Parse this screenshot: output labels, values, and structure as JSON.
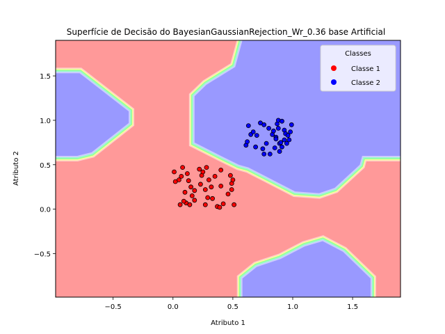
{
  "chart_data": {
    "type": "scatter",
    "title": "Superfície de Decisão do BayesianGaussianRejection_Wr_0.36 base Artificial",
    "xlabel": "Atributo 1",
    "ylabel": "Atributo 2",
    "xlim": [
      -0.98,
      1.9
    ],
    "ylim": [
      -0.99,
      1.9
    ],
    "xticks": [
      -0.5,
      0.0,
      0.5,
      1.0,
      1.5
    ],
    "xtick_labels": [
      "−0.5",
      "0.0",
      "0.5",
      "1.0",
      "1.5"
    ],
    "yticks": [
      -0.5,
      0.0,
      0.5,
      1.0,
      1.5
    ],
    "ytick_labels": [
      "−0.5",
      "0.0",
      "0.5",
      "1.0",
      "1.5"
    ],
    "grid": false,
    "legend": {
      "title": "Classes",
      "position": "top-right",
      "entries": [
        {
          "label": "Classe 1",
          "color": "#ff0000"
        },
        {
          "label": "Classe 2",
          "color": "#0000ff"
        }
      ]
    },
    "background": {
      "class1_color": "#ff9999",
      "class2_color": "#9999ff",
      "boundary_colors": [
        "#ccccff",
        "#99ffcc",
        "#99ff99",
        "#ffff99",
        "#ffcccc"
      ],
      "class2_regions": [
        [
          [
            -0.98,
            0.6
          ],
          [
            -0.98,
            1.53
          ],
          [
            -0.78,
            1.53
          ],
          [
            -0.37,
            1.1
          ],
          [
            -0.37,
            0.97
          ],
          [
            -0.68,
            0.64
          ],
          [
            -0.8,
            0.6
          ]
        ],
        [
          [
            0.18,
            1.27
          ],
          [
            0.18,
            0.75
          ],
          [
            0.4,
            0.6
          ],
          [
            0.55,
            0.5
          ],
          [
            0.63,
            0.47
          ],
          [
            1.02,
            0.2
          ],
          [
            1.22,
            0.18
          ],
          [
            1.35,
            0.24
          ],
          [
            1.56,
            0.5
          ],
          [
            1.58,
            0.6
          ],
          [
            1.9,
            0.6
          ],
          [
            1.9,
            1.9
          ],
          [
            0.58,
            1.9
          ],
          [
            0.52,
            1.6
          ],
          [
            0.28,
            1.4
          ]
        ],
        [
          [
            0.58,
            -0.99
          ],
          [
            0.58,
            -0.78
          ],
          [
            0.7,
            -0.65
          ],
          [
            0.9,
            -0.56
          ],
          [
            1.1,
            -0.42
          ],
          [
            1.25,
            -0.36
          ],
          [
            1.42,
            -0.48
          ],
          [
            1.65,
            -0.78
          ],
          [
            1.65,
            -0.99
          ]
        ]
      ]
    },
    "series": [
      {
        "name": "Classe 1",
        "color": "#ff0000",
        "points": [
          [
            0.01,
            0.42
          ],
          [
            0.05,
            0.33
          ],
          [
            0.07,
            0.37
          ],
          [
            0.08,
            0.47
          ],
          [
            0.02,
            0.31
          ],
          [
            0.06,
            0.05
          ],
          [
            0.1,
            0.19
          ],
          [
            0.11,
            0.07
          ],
          [
            0.12,
            0.4
          ],
          [
            0.13,
            0.32
          ],
          [
            0.14,
            0.05
          ],
          [
            0.15,
            0.25
          ],
          [
            0.16,
            0.15
          ],
          [
            0.18,
            0.21
          ],
          [
            0.18,
            0.1
          ],
          [
            0.22,
            0.45
          ],
          [
            0.23,
            0.28
          ],
          [
            0.24,
            0.38
          ],
          [
            0.25,
            0.42
          ],
          [
            0.27,
            0.22
          ],
          [
            0.27,
            0.05
          ],
          [
            0.28,
            0.47
          ],
          [
            0.29,
            0.13
          ],
          [
            0.3,
            0.33
          ],
          [
            0.32,
            0.25
          ],
          [
            0.33,
            0.12
          ],
          [
            0.35,
            0.37
          ],
          [
            0.37,
            0.03
          ],
          [
            0.39,
            0.02
          ],
          [
            0.4,
            0.44
          ],
          [
            0.4,
            0.26
          ],
          [
            0.42,
            0.06
          ],
          [
            0.46,
            0.17
          ],
          [
            0.48,
            0.38
          ],
          [
            0.49,
            0.29
          ],
          [
            0.49,
            0.22
          ],
          [
            0.5,
            0.33
          ],
          [
            0.51,
            0.05
          ],
          [
            0.09,
            0.09
          ]
        ]
      },
      {
        "name": "Classe 2",
        "color": "#0000ff",
        "points": [
          [
            0.61,
            0.72
          ],
          [
            0.62,
            0.76
          ],
          [
            0.63,
            0.94
          ],
          [
            0.65,
            0.84
          ],
          [
            0.67,
            0.87
          ],
          [
            0.69,
            0.7
          ],
          [
            0.7,
            0.83
          ],
          [
            0.73,
            0.97
          ],
          [
            0.75,
            0.68
          ],
          [
            0.76,
            0.62
          ],
          [
            0.76,
            0.95
          ],
          [
            0.78,
            0.74
          ],
          [
            0.8,
            0.91
          ],
          [
            0.81,
            0.62
          ],
          [
            0.83,
            0.84
          ],
          [
            0.84,
            0.88
          ],
          [
            0.85,
            0.69
          ],
          [
            0.86,
            0.81
          ],
          [
            0.87,
            0.96
          ],
          [
            0.88,
            0.91
          ],
          [
            0.88,
            1.0
          ],
          [
            0.89,
            0.74
          ],
          [
            0.89,
            0.65
          ],
          [
            0.9,
            0.75
          ],
          [
            0.91,
            0.99
          ],
          [
            0.91,
            0.7
          ],
          [
            0.93,
            0.78
          ],
          [
            0.93,
            0.89
          ],
          [
            0.94,
            0.85
          ],
          [
            0.95,
            0.74
          ],
          [
            0.96,
            0.83
          ],
          [
            0.97,
            0.78
          ],
          [
            0.98,
            0.87
          ],
          [
            0.99,
            0.95
          ],
          [
            0.86,
            0.79
          ]
        ]
      }
    ]
  }
}
